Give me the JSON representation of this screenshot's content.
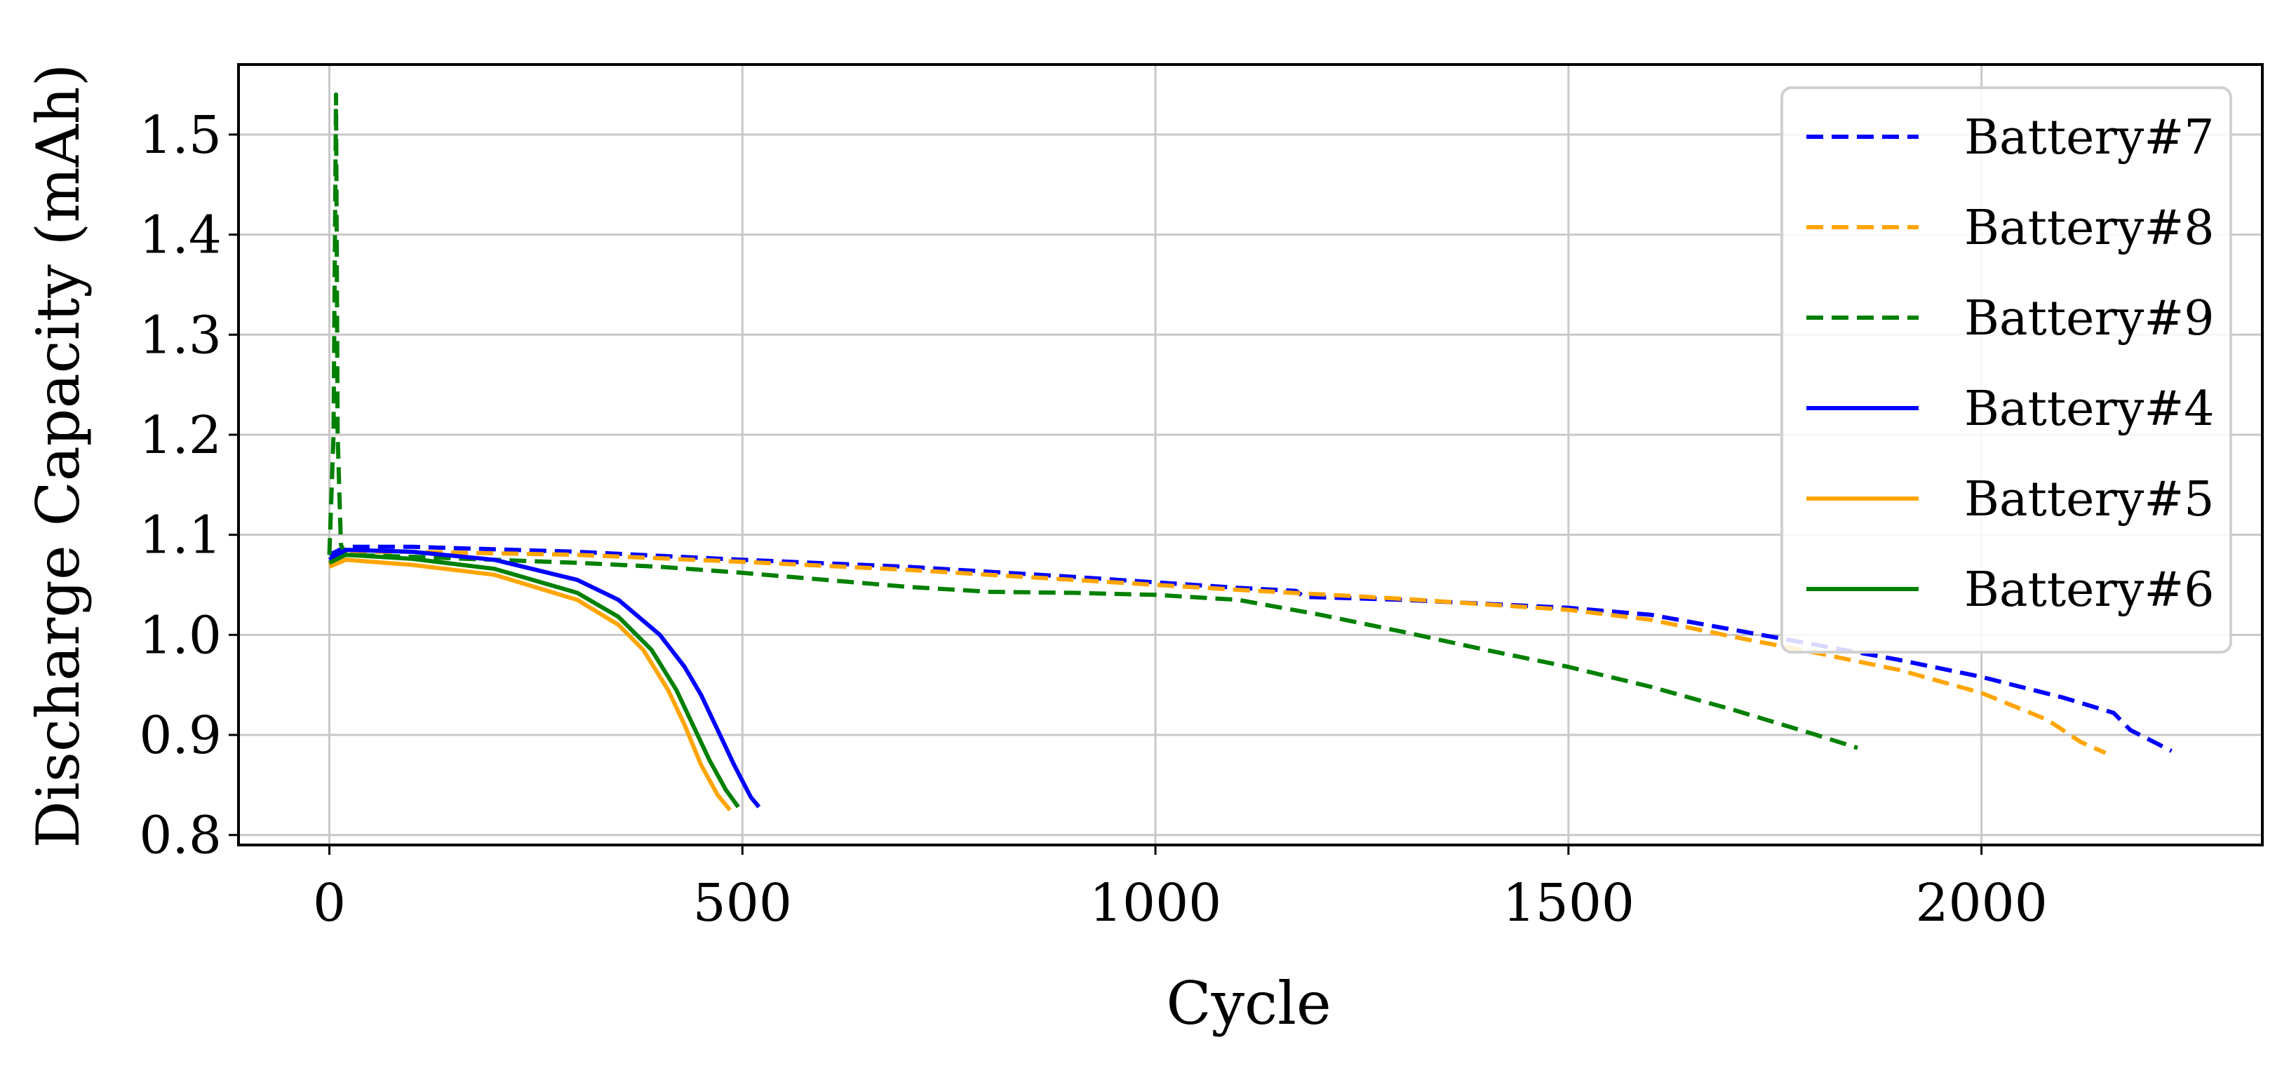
{
  "chart_data": {
    "type": "line",
    "title": "",
    "xlabel": "Cycle",
    "ylabel": "Discharge Capacity (mAh)",
    "xlim": [
      -110,
      2340
    ],
    "ylim": [
      0.79,
      1.57
    ],
    "xticks": [
      0,
      500,
      1000,
      1500,
      2000
    ],
    "xtick_labels": [
      "0",
      "500",
      "1000",
      "1500",
      "2000"
    ],
    "yticks": [
      0.8,
      0.9,
      1.0,
      1.1,
      1.2,
      1.3,
      1.4,
      1.5
    ],
    "ytick_labels": [
      "0.8",
      "0.9",
      "1.0",
      "1.1",
      "1.2",
      "1.3",
      "1.4",
      "1.5"
    ],
    "grid": true,
    "legend_position": "top-right",
    "series": [
      {
        "name": "Battery#7",
        "color": "#0000ff",
        "style": "dashed",
        "x": [
          0,
          20,
          100,
          300,
          500,
          700,
          900,
          1100,
          1170,
          1180,
          1300,
          1500,
          1600,
          1700,
          1800,
          1900,
          2000,
          2100,
          2160,
          2180,
          2230
        ],
        "y": [
          1.08,
          1.088,
          1.088,
          1.083,
          1.075,
          1.068,
          1.058,
          1.047,
          1.044,
          1.038,
          1.035,
          1.027,
          1.02,
          1.005,
          0.99,
          0.975,
          0.958,
          0.937,
          0.922,
          0.905,
          0.884
        ]
      },
      {
        "name": "Battery#8",
        "color": "#ffa500",
        "style": "dashed",
        "x": [
          0,
          20,
          100,
          300,
          500,
          700,
          900,
          1100,
          1300,
          1500,
          1600,
          1700,
          1800,
          1900,
          2000,
          2080,
          2120,
          2150
        ],
        "y": [
          1.07,
          1.083,
          1.083,
          1.08,
          1.073,
          1.065,
          1.055,
          1.045,
          1.036,
          1.025,
          1.015,
          0.998,
          0.982,
          0.965,
          0.942,
          0.915,
          0.893,
          0.882
        ]
      },
      {
        "name": "Battery#9",
        "color": "#008000",
        "style": "dashed",
        "x": [
          0,
          5,
          8,
          10,
          14,
          20,
          100,
          200,
          300,
          400,
          500,
          600,
          700,
          800,
          900,
          1000,
          1100,
          1200,
          1300,
          1400,
          1500,
          1600,
          1700,
          1800,
          1850
        ],
        "y": [
          1.08,
          1.2,
          1.54,
          1.2,
          1.09,
          1.08,
          1.078,
          1.075,
          1.072,
          1.068,
          1.062,
          1.055,
          1.048,
          1.043,
          1.042,
          1.04,
          1.035,
          1.02,
          1.003,
          0.985,
          0.968,
          0.948,
          0.925,
          0.9,
          0.887
        ]
      },
      {
        "name": "Battery#4",
        "color": "#0000ff",
        "style": "solid",
        "x": [
          0,
          20,
          100,
          200,
          300,
          350,
          400,
          430,
          450,
          470,
          490,
          510,
          520
        ],
        "y": [
          1.075,
          1.085,
          1.083,
          1.075,
          1.055,
          1.035,
          1.0,
          0.968,
          0.94,
          0.905,
          0.87,
          0.838,
          0.828
        ]
      },
      {
        "name": "Battery#5",
        "color": "#ffa500",
        "style": "solid",
        "x": [
          0,
          20,
          100,
          200,
          300,
          350,
          380,
          410,
          430,
          450,
          470,
          485
        ],
        "y": [
          1.068,
          1.075,
          1.07,
          1.06,
          1.035,
          1.01,
          0.985,
          0.945,
          0.91,
          0.87,
          0.84,
          0.825
        ]
      },
      {
        "name": "Battery#6",
        "color": "#008000",
        "style": "solid",
        "x": [
          0,
          20,
          100,
          200,
          300,
          350,
          390,
          420,
          440,
          460,
          480,
          495
        ],
        "y": [
          1.072,
          1.08,
          1.076,
          1.066,
          1.042,
          1.018,
          0.985,
          0.945,
          0.91,
          0.875,
          0.845,
          0.828
        ]
      }
    ]
  }
}
